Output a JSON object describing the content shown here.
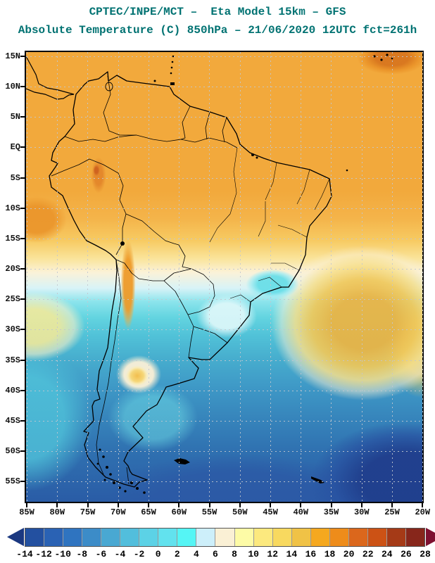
{
  "header": {
    "title": "CPTEC/INPE/MCT –  Eta Model 15km – GFS",
    "subtitle": "Absolute Temperature (C) 850hPa – 21/06/2020 12UTC fct=261h",
    "title_color": "#007272"
  },
  "map": {
    "projection": "lat/lon South America, 85W–20W, 15N–55S",
    "lat_ticks": [
      "15N",
      "10N",
      "5N",
      "EQ",
      "5S",
      "10S",
      "15S",
      "20S",
      "25S",
      "30S",
      "35S",
      "40S",
      "45S",
      "50S",
      "55S"
    ],
    "lon_ticks": [
      "85W",
      "80W",
      "75W",
      "70W",
      "65W",
      "60W",
      "55W",
      "50W",
      "45W",
      "40W",
      "35W",
      "30W",
      "25W",
      "20W"
    ],
    "grid_color": "#c2c7cf",
    "border_color": "#000000",
    "field_regions": [
      {
        "area": "Tropical South America and adjacent oceans (15N–15S)",
        "approx_temp_c": "16 to 22"
      },
      {
        "area": "Colombian Andes / Venezuela patches",
        "approx_temp_c": "20 to 24"
      },
      {
        "area": "Top-right corner near Cape Verde",
        "approx_temp_c": "22 to 26"
      },
      {
        "area": "Bolivian Altiplano to SE Brazil transition band",
        "approx_temp_c": "6 to 12"
      },
      {
        "area": "SE Brazil inland cyan pocket",
        "approx_temp_c": "0 to 4"
      },
      {
        "area": "Central Argentina warm spot (~37S 66W)",
        "approx_temp_c": "10 to 14"
      },
      {
        "area": "Subtropical South Atlantic warm sector",
        "approx_temp_c": "12 to 16"
      },
      {
        "area": "Patagonia and mid-latitude oceans",
        "approx_temp_c": "-2 to 6"
      },
      {
        "area": "Far South Atlantic (bottom right)",
        "approx_temp_c": "-10 to -6"
      }
    ]
  },
  "colorbar": {
    "unit": "C",
    "tick_labels": [
      "-14",
      "-12",
      "-10",
      "-8",
      "-6",
      "-4",
      "-2",
      "0",
      "2",
      "4",
      "6",
      "8",
      "10",
      "12",
      "14",
      "16",
      "18",
      "20",
      "22",
      "24",
      "26",
      "28"
    ],
    "cell_colors": [
      "#2350a0",
      "#2a62b4",
      "#2f74c0",
      "#3c8cc8",
      "#49a8d2",
      "#52bedc",
      "#5cd2e6",
      "#62e2ee",
      "#55f5f5",
      "#cdeffa",
      "#faf0d5",
      "#fdfba6",
      "#fce97e",
      "#f8d95f",
      "#f0c246",
      "#f5a81f",
      "#ee8c1a",
      "#db671c",
      "#cc5215",
      "#a53a17",
      "#87261b"
    ],
    "left_arrow_color": "#1b3880",
    "right_arrow_color": "#7e1030"
  }
}
